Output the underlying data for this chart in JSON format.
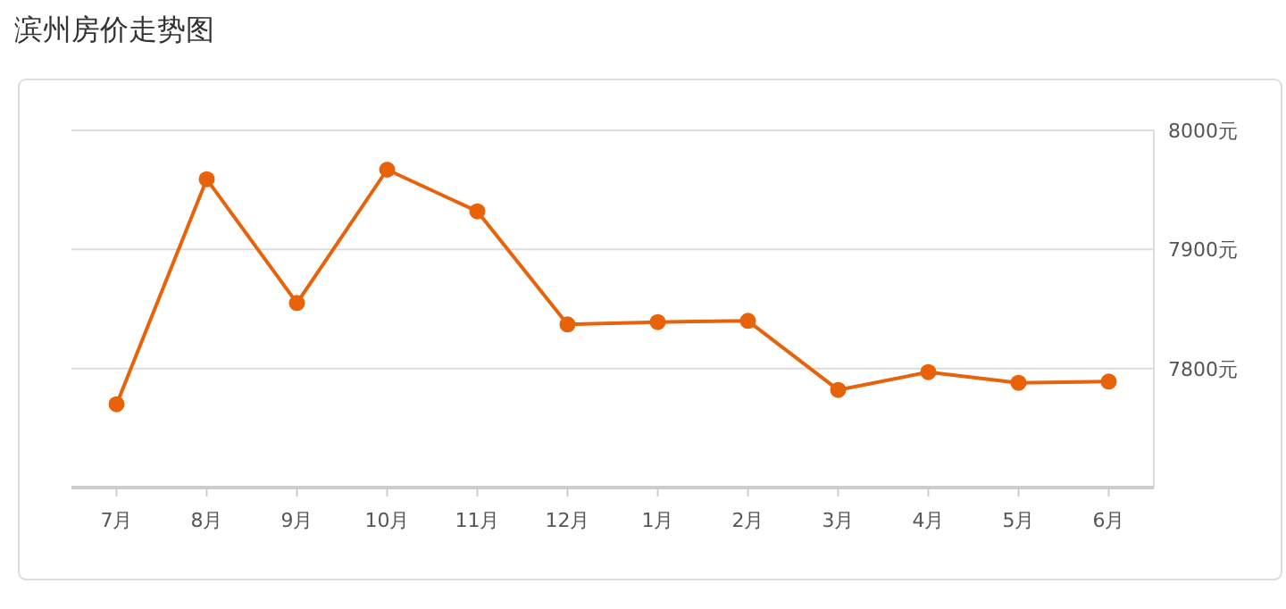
{
  "chart_data": {
    "type": "line",
    "title": "滨州房价走势图",
    "categories": [
      "7月",
      "8月",
      "9月",
      "10月",
      "11月",
      "12月",
      "1月",
      "2月",
      "3月",
      "4月",
      "5月",
      "6月"
    ],
    "series": [
      {
        "color": "#e8620a",
        "values": [
          7770,
          7959,
          7855,
          7967,
          7932,
          7837,
          7839,
          7840,
          7782,
          7797,
          7788,
          7789
        ]
      }
    ],
    "ylim": [
      7700,
      8000
    ],
    "yticks": [
      {
        "value": 7800,
        "label": "7800元"
      },
      {
        "value": 7900,
        "label": "7900元"
      },
      {
        "value": 8000,
        "label": "8000元"
      }
    ],
    "grid": "y",
    "marker": "circle",
    "line_style": "solid"
  }
}
